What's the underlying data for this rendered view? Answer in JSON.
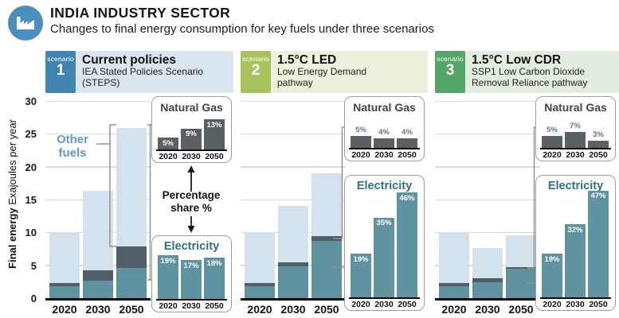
{
  "header": {
    "title": "INDIA INDUSTRY SECTOR",
    "subtitle": "Changes to final energy consumption for key fuels under three scenarios",
    "icon": "factory-icon"
  },
  "y_axis": {
    "label_bold": "Final energy",
    "label_regular": " Exajoules per year",
    "ticks": [
      "0",
      "5",
      "10",
      "15",
      "20",
      "25",
      "30"
    ],
    "max": 30
  },
  "annotations": {
    "other_fuels": "Other fuels",
    "percentage_share": "Percentage share %"
  },
  "scenarios": [
    {
      "tag": "scenario",
      "number": "1",
      "title": "Current policies",
      "subtitle": "IEA Stated Policies Scenario\n(STEPS)",
      "accent": "#4285b2",
      "bg": "#dbe5f0"
    },
    {
      "tag": "scenario",
      "number": "2",
      "title": "1.5°C LED",
      "subtitle": "Low Energy Demand\npathway",
      "accent": "#a8c35c",
      "bg": "#edf0da"
    },
    {
      "tag": "scenario",
      "number": "3",
      "title": "1.5°C Low CDR",
      "subtitle": "SSP1 Low Carbon Dioxide\nRemoval Reliance pathway",
      "accent": "#53a668",
      "bg": "#e2ecdf"
    }
  ],
  "colors": {
    "electricity": "#5d929e",
    "natural_gas": "#515e66",
    "other_fuels": "#d3e2ec",
    "electricity_title": "#2e7284",
    "other_fuels_label": "#5f9cc4",
    "header_icon_blue": "#4a90bf"
  },
  "chart_data": [
    {
      "type": "bar",
      "stacked": true,
      "scenario": "Current policies",
      "ylabel": "Final energy Exajoules per year",
      "ylim": [
        0,
        30
      ],
      "grid": true,
      "categories": [
        "2020",
        "2030",
        "2050"
      ],
      "series": [
        {
          "name": "Electricity",
          "values": [
            1.9,
            2.8,
            4.7
          ],
          "color": "#5d929e"
        },
        {
          "name": "Natural Gas",
          "values": [
            0.5,
            1.5,
            3.3
          ],
          "color": "#515e66"
        },
        {
          "name": "Other fuels",
          "values": [
            7.7,
            12.2,
            18.0
          ],
          "color": "#d3e2ec"
        }
      ]
    },
    {
      "type": "bar",
      "scenario": "Current policies",
      "title": "Natural Gas",
      "unit": "%",
      "categories": [
        "2020",
        "2030",
        "2050"
      ],
      "values": [
        5,
        9,
        13
      ],
      "labels": [
        "5%",
        "9%",
        "13%"
      ],
      "color": "#5a6165",
      "label_position": "inside"
    },
    {
      "type": "bar",
      "scenario": "Current policies",
      "title": "Electricity",
      "unit": "%",
      "categories": [
        "2020",
        "2030",
        "2050"
      ],
      "values": [
        19,
        17,
        18
      ],
      "labels": [
        "19%",
        "17%",
        "18%"
      ],
      "color": "#5e939f",
      "label_position": "inside"
    },
    {
      "type": "bar",
      "stacked": true,
      "scenario": "1.5°C LED",
      "ylabel": "Final energy Exajoules per year",
      "ylim": [
        0,
        30
      ],
      "grid": true,
      "categories": [
        "2020",
        "2030",
        "2050"
      ],
      "series": [
        {
          "name": "Electricity",
          "values": [
            1.9,
            5.0,
            8.8
          ],
          "color": "#5d929e"
        },
        {
          "name": "Natural Gas",
          "values": [
            0.5,
            0.6,
            0.8
          ],
          "color": "#515e66"
        },
        {
          "name": "Other fuels",
          "values": [
            7.7,
            8.6,
            9.5
          ],
          "color": "#d3e2ec"
        }
      ]
    },
    {
      "type": "bar",
      "scenario": "1.5°C LED",
      "title": "Natural Gas",
      "unit": "%",
      "categories": [
        "2020",
        "2030",
        "2050"
      ],
      "values": [
        5,
        4,
        4
      ],
      "labels": [
        "5%",
        "4%",
        "4%"
      ],
      "color": "#5a6165",
      "label_position": "above"
    },
    {
      "type": "bar",
      "scenario": "1.5°C LED",
      "title": "Electricity",
      "unit": "%",
      "categories": [
        "2020",
        "2030",
        "2050"
      ],
      "values": [
        19,
        35,
        46
      ],
      "labels": [
        "19%",
        "35%",
        "46%"
      ],
      "color": "#5e939f",
      "label_position": "inside"
    },
    {
      "type": "bar",
      "stacked": true,
      "scenario": "1.5°C Low CDR",
      "ylabel": "Final energy Exajoules per year",
      "ylim": [
        0,
        30
      ],
      "grid": true,
      "categories": [
        "2020",
        "2030",
        "2050"
      ],
      "series": [
        {
          "name": "Electricity",
          "values": [
            1.9,
            2.5,
            4.6
          ],
          "color": "#5d929e"
        },
        {
          "name": "Natural Gas",
          "values": [
            0.5,
            0.6,
            0.3
          ],
          "color": "#515e66"
        },
        {
          "name": "Other fuels",
          "values": [
            7.7,
            4.7,
            4.8
          ],
          "color": "#d3e2ec"
        }
      ]
    },
    {
      "type": "bar",
      "scenario": "1.5°C Low CDR",
      "title": "Natural Gas",
      "unit": "%",
      "categories": [
        "2020",
        "2030",
        "2050"
      ],
      "values": [
        5,
        7,
        3
      ],
      "labels": [
        "5%",
        "7%",
        "3%"
      ],
      "color": "#5a6165",
      "label_position": "above"
    },
    {
      "type": "bar",
      "scenario": "1.5°C Low CDR",
      "title": "Electricity",
      "unit": "%",
      "categories": [
        "2020",
        "2030",
        "2050"
      ],
      "values": [
        19,
        32,
        47
      ],
      "labels": [
        "19%",
        "32%",
        "47%"
      ],
      "color": "#5e939f",
      "label_position": "inside"
    }
  ]
}
